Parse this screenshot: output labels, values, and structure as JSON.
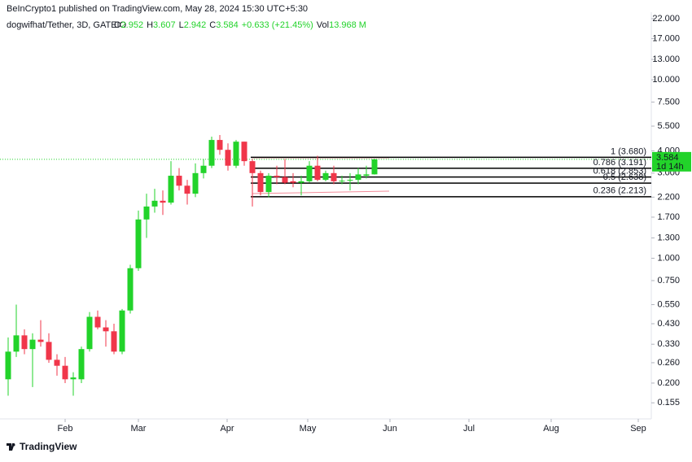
{
  "header": {
    "publisher": "BeInCrypto1 published on TradingView.com, May 28, 2024 15:30 UTC+5:30",
    "symbol": "dogwifhat/Tether, 3D, GATEIO",
    "ohlc": [
      {
        "key": "O",
        "value": 2.952
      },
      {
        "key": "H",
        "value": 3.607
      },
      {
        "key": "L",
        "value": 2.942
      },
      {
        "key": "C",
        "value": 3.584
      }
    ],
    "change": "+0.633 (+21.45%)",
    "volume_key": "Vol",
    "volume": "13.968 M"
  },
  "chart_data": {
    "type": "candlestick",
    "log_scale": true,
    "grid": false,
    "up_color": "#22d32a",
    "down_color": "#f0364a",
    "x": [
      0,
      1,
      2,
      3,
      4,
      5,
      6,
      7,
      8,
      9,
      10,
      11,
      12,
      13,
      14,
      15,
      16,
      17,
      18,
      19,
      20,
      21,
      22,
      23,
      24,
      25,
      26,
      27,
      28,
      29,
      30,
      31,
      32,
      33,
      34,
      35,
      36,
      37,
      38,
      39,
      40,
      41,
      42,
      43,
      44,
      45
    ],
    "open": [
      0.21,
      0.3,
      0.37,
      0.31,
      0.35,
      0.34,
      0.27,
      0.25,
      0.21,
      0.21,
      0.31,
      0.47,
      0.41,
      0.39,
      0.3,
      0.51,
      0.88,
      1.65,
      1.95,
      2.1,
      2.05,
      2.9,
      2.55,
      2.3,
      3.0,
      3.3,
      4.6,
      4.05,
      3.3,
      4.5,
      3.5,
      3.0,
      2.35,
      2.9,
      2.85,
      2.7,
      2.65,
      2.7,
      3.3,
      2.75,
      3.0,
      2.7,
      2.72,
      2.75,
      2.9,
      2.952
    ],
    "high": [
      0.36,
      0.55,
      0.4,
      0.38,
      0.45,
      0.38,
      0.29,
      0.28,
      0.23,
      0.32,
      0.5,
      0.51,
      0.45,
      0.43,
      0.52,
      0.92,
      1.85,
      2.3,
      2.45,
      2.4,
      3.5,
      3.2,
      2.75,
      3.4,
      3.6,
      4.8,
      4.9,
      4.4,
      4.6,
      4.5,
      3.6,
      3.1,
      3.0,
      3.3,
      3.6,
      3.0,
      2.9,
      3.5,
      3.75,
      3.1,
      3.3,
      2.9,
      3.0,
      3.2,
      3.3,
      3.607
    ],
    "low": [
      0.17,
      0.28,
      0.29,
      0.19,
      0.32,
      0.26,
      0.22,
      0.2,
      0.17,
      0.2,
      0.3,
      0.4,
      0.32,
      0.29,
      0.29,
      0.49,
      0.85,
      1.3,
      1.8,
      1.75,
      2.0,
      2.4,
      2.0,
      2.2,
      2.8,
      3.2,
      3.8,
      3.1,
      3.2,
      3.3,
      1.95,
      2.25,
      2.2,
      2.6,
      2.6,
      2.5,
      2.25,
      2.65,
      2.7,
      2.7,
      2.6,
      2.6,
      2.4,
      2.6,
      2.8,
      2.942
    ],
    "close": [
      0.3,
      0.37,
      0.31,
      0.35,
      0.34,
      0.27,
      0.25,
      0.21,
      0.215,
      0.31,
      0.47,
      0.41,
      0.39,
      0.3,
      0.51,
      0.88,
      1.65,
      1.95,
      2.1,
      2.05,
      2.9,
      2.55,
      2.3,
      3.0,
      3.3,
      4.6,
      4.05,
      3.3,
      4.5,
      3.5,
      3.0,
      2.35,
      2.9,
      2.85,
      2.65,
      2.65,
      2.7,
      3.3,
      2.75,
      3.0,
      2.7,
      2.72,
      2.75,
      2.95,
      2.95,
      3.584
    ],
    "xlim": [
      -1,
      79
    ],
    "xticks": [
      {
        "value": 7,
        "label": "Feb"
      },
      {
        "value": 16,
        "label": "Mar"
      },
      {
        "value": 26.9,
        "label": "Apr"
      },
      {
        "value": 36.8,
        "label": "May"
      },
      {
        "value": 46.9,
        "label": "Jun"
      },
      {
        "value": 56.6,
        "label": "Jul"
      },
      {
        "value": 66.7,
        "label": "Aug"
      },
      {
        "value": 77.4,
        "label": "Sep"
      }
    ],
    "ylim": [
      0.126,
      23.9
    ],
    "yticks": [
      {
        "value": 0.155,
        "label": "0.155"
      },
      {
        "value": 0.2,
        "label": "0.200"
      },
      {
        "value": 0.26,
        "label": "0.260"
      },
      {
        "value": 0.33,
        "label": "0.330"
      },
      {
        "value": 0.43,
        "label": "0.430"
      },
      {
        "value": 0.55,
        "label": "0.550"
      },
      {
        "value": 0.75,
        "label": "0.750"
      },
      {
        "value": 1,
        "label": "1.000"
      },
      {
        "value": 1.3,
        "label": "1.300"
      },
      {
        "value": 1.7,
        "label": "1.700"
      },
      {
        "value": 2.2,
        "label": "2.200"
      },
      {
        "value": 3,
        "label": "3.000"
      },
      {
        "value": 4,
        "label": "4.000"
      },
      {
        "value": 5.5,
        "label": "5.500"
      },
      {
        "value": 7.5,
        "label": "7.500"
      },
      {
        "value": 10,
        "label": "10.000"
      },
      {
        "value": 13,
        "label": "13.000"
      },
      {
        "value": 17,
        "label": "17.000"
      },
      {
        "value": 22,
        "label": "22.000"
      }
    ],
    "fib_levels": [
      {
        "label": "1 (3.680)",
        "value": 3.68
      },
      {
        "label": "0.786 (3.191)",
        "value": 3.191
      },
      {
        "label": "0.618 (2.853)",
        "value": 2.853
      },
      {
        "label": "0.5 (2.638)",
        "value": 2.638
      },
      {
        "label": "0.236 (2.213)",
        "value": 2.213
      }
    ],
    "last_price": 3.584,
    "countdown": "1d 14h"
  },
  "footer": {
    "brand": "TradingView"
  }
}
